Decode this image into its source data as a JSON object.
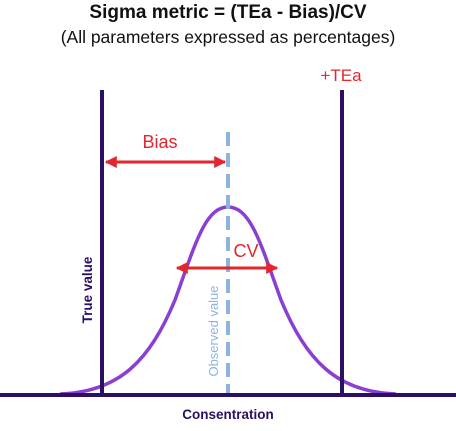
{
  "title": "Sigma metric = (TEa - Bias)/CV",
  "subtitle": "(All parameters expressed as percentages)",
  "labels": {
    "tea": "+TEa",
    "bias": "Bias",
    "cv": "CV",
    "true_value": "True value",
    "observed_value": "Observed value",
    "x_axis": "Consentration"
  },
  "colors": {
    "navy": "#2a0f63",
    "red": "#e3262d",
    "purple": "#8a3fd1",
    "blue_dashed": "#8fb3df"
  }
}
